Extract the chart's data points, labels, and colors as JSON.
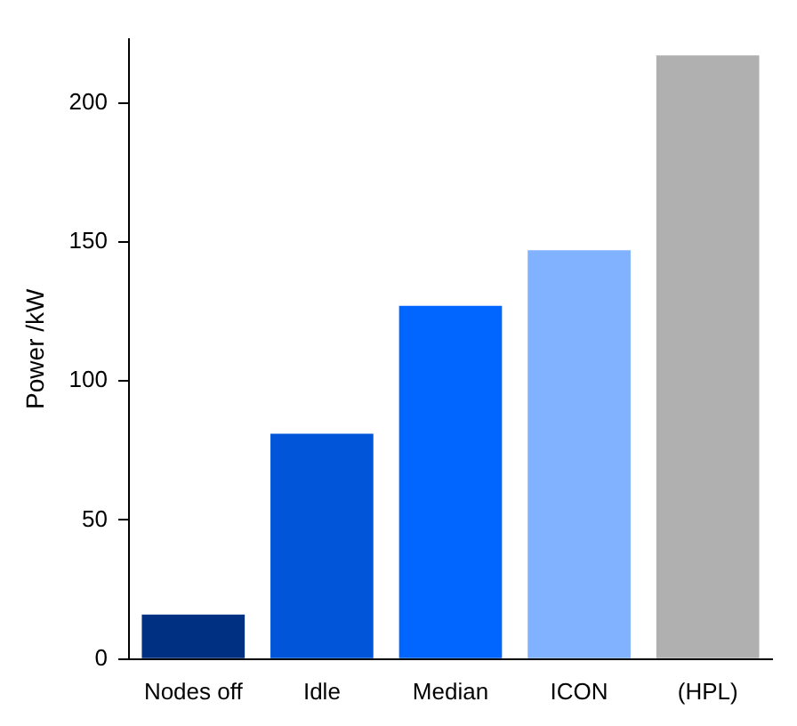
{
  "chart_data": {
    "type": "bar",
    "ylabel": "Power /kW",
    "categories": [
      "Nodes off",
      "Idle",
      "Median",
      "ICON",
      "(HPL)"
    ],
    "values": [
      16,
      81,
      127,
      147,
      217
    ],
    "colors": [
      "#003082",
      "#0055d8",
      "#0066ff",
      "#80b2ff",
      "#b0b0b0"
    ],
    "ylim": [
      0,
      223
    ],
    "yticks": [
      0,
      50,
      100,
      150,
      200
    ],
    "grid": false,
    "legend": false
  }
}
